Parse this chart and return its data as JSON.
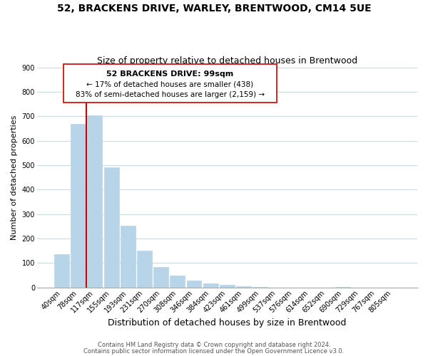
{
  "title": "52, BRACKENS DRIVE, WARLEY, BRENTWOOD, CM14 5UE",
  "subtitle": "Size of property relative to detached houses in Brentwood",
  "xlabel": "Distribution of detached houses by size in Brentwood",
  "ylabel": "Number of detached properties",
  "bar_labels": [
    "40sqm",
    "78sqm",
    "117sqm",
    "155sqm",
    "193sqm",
    "231sqm",
    "270sqm",
    "308sqm",
    "346sqm",
    "384sqm",
    "423sqm",
    "461sqm",
    "499sqm",
    "537sqm",
    "576sqm",
    "614sqm",
    "652sqm",
    "690sqm",
    "729sqm",
    "767sqm",
    "805sqm"
  ],
  "bar_heights": [
    137,
    670,
    703,
    492,
    253,
    152,
    85,
    50,
    28,
    18,
    10,
    5,
    2,
    0,
    0,
    0,
    0,
    3,
    0,
    0,
    0
  ],
  "bar_color": "#b8d4e8",
  "bar_edge_color": "#b8d4e8",
  "vline_color": "#cc0000",
  "vline_x": 1.5,
  "ylim": [
    0,
    900
  ],
  "yticks": [
    0,
    100,
    200,
    300,
    400,
    500,
    600,
    700,
    800,
    900
  ],
  "annotation_title": "52 BRACKENS DRIVE: 99sqm",
  "annotation_line1": "← 17% of detached houses are smaller (438)",
  "annotation_line2": "83% of semi-detached houses are larger (2,159) →",
  "annotation_box_color": "#ffffff",
  "annotation_box_edge": "#cc0000",
  "footer1": "Contains HM Land Registry data © Crown copyright and database right 2024.",
  "footer2": "Contains public sector information licensed under the Open Government Licence v3.0.",
  "bg_color": "#ffffff",
  "grid_color": "#c8dce8",
  "title_fontsize": 10,
  "subtitle_fontsize": 9,
  "xlabel_fontsize": 9,
  "ylabel_fontsize": 8,
  "tick_fontsize": 7,
  "footer_fontsize": 6,
  "ann_title_fontsize": 8,
  "ann_text_fontsize": 7.5
}
